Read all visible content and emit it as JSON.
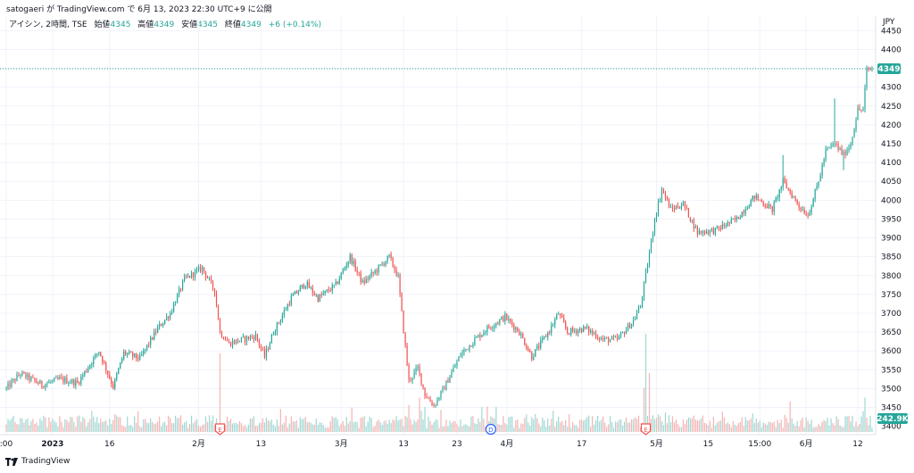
{
  "header": {
    "published_text": "satogaeri が TradingView.com で 6月 13, 2023 22:30 UTC+9 に公開"
  },
  "legend": {
    "symbol": "アイシン, 2時間, TSE",
    "open_label": "始値",
    "open_value": "4345",
    "high_label": "高値",
    "high_value": "4349",
    "low_label": "安値",
    "low_value": "4345",
    "close_label": "終値",
    "close_value": "4349",
    "change": "+6 (+0.14%)"
  },
  "footer": {
    "brand": "TradingView"
  },
  "colors": {
    "up": "#26a69a",
    "down": "#ef5350",
    "vol_up": "#9fd8d2",
    "vol_down": "#f5b3b2",
    "grid": "#f0f3fa",
    "text": "#131722"
  },
  "chart_data": {
    "type": "candlestick",
    "currency": "JPY",
    "y_axis": {
      "min": 3385,
      "max": 4465,
      "ticks": [
        3400,
        3450,
        3500,
        3550,
        3600,
        3650,
        3700,
        3750,
        3800,
        3850,
        3900,
        3950,
        4000,
        4050,
        4100,
        4150,
        4200,
        4250,
        4300,
        4350,
        4400,
        4450
      ]
    },
    "x_axis": {
      "labels": [
        {
          "text": ":00",
          "bar": 0
        },
        {
          "text": "2023",
          "bar": 26
        },
        {
          "text": "16",
          "bar": 58
        },
        {
          "text": "2月",
          "bar": 108
        },
        {
          "text": "13",
          "bar": 143
        },
        {
          "text": "3月",
          "bar": 188
        },
        {
          "text": "13",
          "bar": 223
        },
        {
          "text": "23",
          "bar": 253
        },
        {
          "text": "4月",
          "bar": 281
        },
        {
          "text": "17",
          "bar": 323
        },
        {
          "text": "5月",
          "bar": 365
        },
        {
          "text": "15",
          "bar": 394
        },
        {
          "text": "15:00",
          "bar": 423
        },
        {
          "text": "6月",
          "bar": 449
        },
        {
          "text": "12",
          "bar": 478
        }
      ]
    },
    "last_price": 4349,
    "last_volume_label": "242.9K",
    "events": [
      {
        "type": "earnings",
        "label": "E",
        "bar": 120
      },
      {
        "type": "dividend",
        "label": "D",
        "bar": 272
      },
      {
        "type": "earnings",
        "label": "E",
        "bar": 359
      }
    ],
    "anchors": [
      [
        0,
        3500
      ],
      [
        8,
        3540
      ],
      [
        20,
        3510
      ],
      [
        30,
        3525
      ],
      [
        40,
        3515
      ],
      [
        52,
        3600
      ],
      [
        60,
        3505
      ],
      [
        66,
        3595
      ],
      [
        75,
        3580
      ],
      [
        85,
        3660
      ],
      [
        92,
        3700
      ],
      [
        100,
        3790
      ],
      [
        110,
        3820
      ],
      [
        117,
        3760
      ],
      [
        120,
        3650
      ],
      [
        125,
        3620
      ],
      [
        140,
        3640
      ],
      [
        145,
        3585
      ],
      [
        150,
        3650
      ],
      [
        160,
        3740
      ],
      [
        168,
        3780
      ],
      [
        175,
        3740
      ],
      [
        185,
        3775
      ],
      [
        193,
        3850
      ],
      [
        200,
        3780
      ],
      [
        208,
        3815
      ],
      [
        215,
        3850
      ],
      [
        220,
        3795
      ],
      [
        222,
        3700
      ],
      [
        226,
        3520
      ],
      [
        231,
        3555
      ],
      [
        235,
        3485
      ],
      [
        240,
        3455
      ],
      [
        245,
        3495
      ],
      [
        255,
        3590
      ],
      [
        263,
        3630
      ],
      [
        270,
        3660
      ],
      [
        280,
        3690
      ],
      [
        288,
        3650
      ],
      [
        295,
        3585
      ],
      [
        300,
        3620
      ],
      [
        305,
        3655
      ],
      [
        310,
        3700
      ],
      [
        315,
        3650
      ],
      [
        325,
        3660
      ],
      [
        335,
        3630
      ],
      [
        343,
        3630
      ],
      [
        352,
        3680
      ],
      [
        356,
        3720
      ],
      [
        360,
        3830
      ],
      [
        364,
        3950
      ],
      [
        368,
        4030
      ],
      [
        373,
        3975
      ],
      [
        380,
        3990
      ],
      [
        388,
        3915
      ],
      [
        398,
        3920
      ],
      [
        410,
        3950
      ],
      [
        420,
        4010
      ],
      [
        430,
        3975
      ],
      [
        436,
        4050
      ],
      [
        445,
        3985
      ],
      [
        450,
        3960
      ],
      [
        456,
        4050
      ],
      [
        460,
        4130
      ],
      [
        465,
        4150
      ],
      [
        470,
        4120
      ],
      [
        474,
        4150
      ],
      [
        478,
        4240
      ],
      [
        481,
        4240
      ],
      [
        483,
        4345
      ],
      [
        486,
        4349
      ]
    ],
    "spikes": [
      {
        "bar": 436,
        "high": 4120
      },
      {
        "bar": 465,
        "high": 4270
      },
      {
        "bar": 470,
        "low": 4080
      }
    ],
    "volume_spikes": [
      {
        "bar": 120,
        "volume": 1600
      },
      {
        "bar": 359,
        "volume": 2000
      },
      {
        "bar": 361,
        "volume": 1200
      },
      {
        "bar": 358,
        "volume": 900
      },
      {
        "bar": 232,
        "volume": 700
      },
      {
        "bar": 270,
        "volume": 520
      },
      {
        "bar": 440,
        "volume": 620
      },
      {
        "bar": 482,
        "volume": 700
      }
    ],
    "bars": 487
  }
}
